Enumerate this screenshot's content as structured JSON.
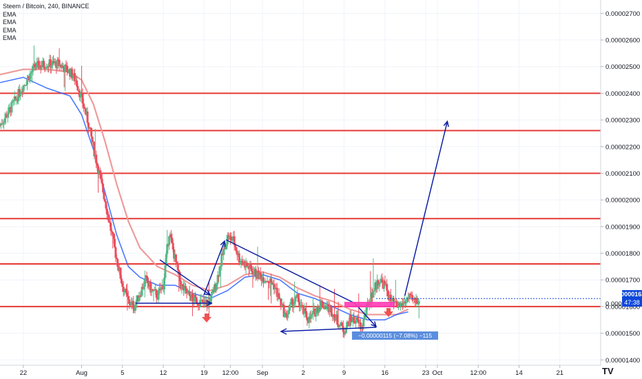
{
  "legend": {
    "title": "Steem / Bitcoin, 240, BINANCE",
    "indicators": [
      "EMA",
      "EMA",
      "EMA",
      "EMA"
    ]
  },
  "last_price_label": "0.00001630",
  "countdown_label": "47:38",
  "hidden_price_label": "0.000",
  "measure_label": "−0.00000115 (−7.08%) −115",
  "logo_text": "TV",
  "colors": {
    "candle_up": "#53b987",
    "candle_down": "#eb4d5c",
    "level_line": "#e53935",
    "ema_fast": "#2962ff",
    "ema_slow": "#ef9a9a",
    "drawing": "#0d1fa3",
    "zone": "#ff3ab5",
    "arrow_down": "#ef5350"
  },
  "chart_data": {
    "type": "candlestick",
    "symbol": "Steem / Bitcoin",
    "interval": "240",
    "exchange": "BINANCE",
    "ylim": [
      1.38e-05,
      2.75e-05
    ],
    "y_ticks": [
      "0.00002700",
      "0.00002600",
      "0.00002500",
      "0.00002400",
      "0.00002300",
      "0.00002200",
      "0.00002100",
      "0.00002000",
      "0.00001900",
      "0.00001800",
      "0.00001700",
      "0.00001600",
      "0.00001500",
      "0.00001400"
    ],
    "y_tick_values": [
      2.7e-05,
      2.6e-05,
      2.5e-05,
      2.4e-05,
      2.3e-05,
      2.2e-05,
      2.1e-05,
      2e-05,
      1.9e-05,
      1.8e-05,
      1.7e-05,
      1.6e-05,
      1.5e-05,
      1.4e-05
    ],
    "x_ticks": [
      "22",
      "Aug",
      "5",
      "12",
      "19",
      "12:00",
      "Sep",
      "2",
      "9",
      "16",
      "23",
      "Oct",
      "12:00",
      "14",
      "21"
    ],
    "x_tick_days": [
      22,
      32,
      39,
      46,
      53,
      57.5,
      63,
      70,
      77,
      84,
      91,
      93,
      100,
      107,
      114
    ],
    "x_domain_days": [
      18,
      121
    ],
    "horizontal_levels": [
      2.4e-05,
      2.26e-05,
      2.1e-05,
      1.93e-05,
      1.76e-05,
      1.6e-05
    ],
    "price_path_days": [
      18,
      20,
      22,
      24,
      26,
      28,
      30,
      31,
      32,
      33,
      34,
      35,
      36,
      37,
      38,
      39,
      40,
      41,
      42,
      43,
      44,
      45,
      46,
      47,
      48,
      49,
      50,
      51,
      52,
      53,
      54,
      55,
      56,
      57,
      58,
      59,
      60,
      61,
      62,
      63,
      64,
      65,
      66,
      67,
      68,
      69,
      70,
      71,
      72,
      73,
      74,
      75,
      76,
      77,
      78,
      79,
      80,
      81,
      82,
      83,
      84,
      85,
      86,
      87,
      88,
      89,
      90
    ],
    "price_path": [
      2.28e-05,
      2.35e-05,
      2.43e-05,
      2.5e-05,
      2.51e-05,
      2.51e-05,
      2.48e-05,
      2.45e-05,
      2.38e-05,
      2.3e-05,
      2.2e-05,
      2.1e-05,
      2e-05,
      1.89e-05,
      1.78e-05,
      1.68e-05,
      1.62e-05,
      1.6e-05,
      1.65e-05,
      1.7e-05,
      1.66e-05,
      1.64e-05,
      1.68e-05,
      1.88e-05,
      1.78e-05,
      1.68e-05,
      1.65e-05,
      1.63e-05,
      1.62e-05,
      1.61e-05,
      1.62e-05,
      1.68e-05,
      1.78e-05,
      1.86e-05,
      1.85e-05,
      1.78e-05,
      1.76e-05,
      1.74e-05,
      1.72e-05,
      1.71e-05,
      1.7e-05,
      1.68e-05,
      1.62e-05,
      1.56e-05,
      1.61e-05,
      1.63e-05,
      1.58e-05,
      1.55e-05,
      1.58e-05,
      1.61e-05,
      1.6e-05,
      1.58e-05,
      1.54e-05,
      1.51e-05,
      1.55e-05,
      1.55e-05,
      1.52e-05,
      1.6e-05,
      1.66e-05,
      1.7e-05,
      1.68e-05,
      1.62e-05,
      1.6e-05,
      1.61e-05,
      1.63e-05,
      1.62e-05,
      1.63e-05
    ],
    "ema_fast_points_days": [
      18,
      22,
      26,
      30,
      32,
      34,
      36,
      38,
      40,
      42,
      45,
      48,
      51,
      54,
      57,
      60,
      63,
      66,
      69,
      72,
      75,
      78,
      81,
      84,
      86,
      88
    ],
    "ema_fast_points": [
      2.44e-05,
      2.46e-05,
      2.42e-05,
      2.39e-05,
      2.32e-05,
      2.19e-05,
      2.03e-05,
      1.87e-05,
      1.75e-05,
      1.71e-05,
      1.68e-05,
      1.68e-05,
      1.65e-05,
      1.63e-05,
      1.66e-05,
      1.71e-05,
      1.72e-05,
      1.7e-05,
      1.65e-05,
      1.63e-05,
      1.6e-05,
      1.57e-05,
      1.55e-05,
      1.55e-05,
      1.57e-05,
      1.58e-05
    ],
    "ema_slow_points_days": [
      18,
      22,
      26,
      30,
      32,
      34,
      36,
      38,
      40,
      42,
      45,
      48,
      51,
      54,
      57,
      60,
      63,
      66,
      69,
      72,
      75,
      78,
      81,
      84,
      86,
      88
    ],
    "ema_slow_points": [
      2.47e-05,
      2.49e-05,
      2.49e-05,
      2.48e-05,
      2.45e-05,
      2.36e-05,
      2.22e-05,
      2.06e-05,
      1.92e-05,
      1.82e-05,
      1.75e-05,
      1.72e-05,
      1.68e-05,
      1.66e-05,
      1.68e-05,
      1.72e-05,
      1.73e-05,
      1.71e-05,
      1.67e-05,
      1.64e-05,
      1.62e-05,
      1.59e-05,
      1.57e-05,
      1.57e-05,
      1.57e-05,
      1.59e-05
    ],
    "last_price": 1.63e-05,
    "annotations": {
      "support_zone": {
        "from_day": 84,
        "to_day": 92,
        "price": 1.6e-05
      },
      "projection_arrow": {
        "from_day": 88,
        "from_price": 1.62e-05,
        "to_day": 94,
        "to_price": 2.31e-05
      },
      "measure": "−0.00000115 (−7.08%) −115"
    }
  }
}
